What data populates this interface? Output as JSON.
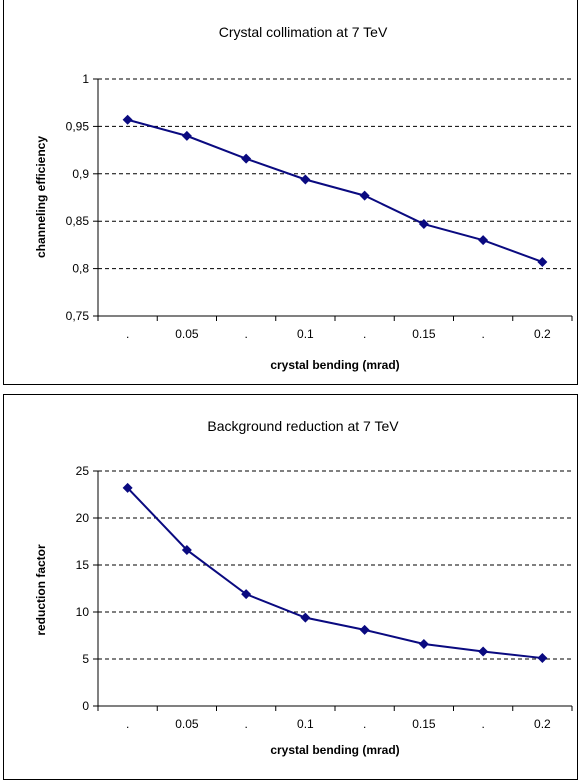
{
  "chart_data": [
    {
      "type": "line",
      "title": "Crystal collimation at 7 TeV",
      "xlabel": "crystal bending (mrad)",
      "ylabel": "channeling efficiency",
      "x_tick_labels": [
        ".",
        "0.05",
        ".",
        "0.1",
        ".",
        "0.15",
        ".",
        "0.2"
      ],
      "y_tick_labels": [
        "0,75",
        "0,8",
        "0,85",
        "0,9",
        "0,95",
        "1"
      ],
      "y_ticks": [
        0.75,
        0.8,
        0.85,
        0.9,
        0.95,
        1.0
      ],
      "ylim": [
        0.75,
        1.0
      ],
      "grid": "horizontal dashed",
      "color": "#0a0a80",
      "marker": "diamond",
      "series": [
        {
          "x": [
            0.025,
            0.05,
            0.075,
            0.1,
            0.125,
            0.15,
            0.175,
            0.2
          ],
          "values": [
            0.957,
            0.94,
            0.916,
            0.894,
            0.877,
            0.847,
            0.83,
            0.807
          ]
        }
      ]
    },
    {
      "type": "line",
      "title": "Background reduction at 7 TeV",
      "xlabel": "crystal bending (mrad)",
      "ylabel": "reduction factor",
      "x_tick_labels": [
        ".",
        "0.05",
        ".",
        "0.1",
        ".",
        "0.15",
        ".",
        "0.2"
      ],
      "y_tick_labels": [
        "0",
        "5",
        "10",
        "15",
        "20",
        "25"
      ],
      "y_ticks": [
        0,
        5,
        10,
        15,
        20,
        25
      ],
      "ylim": [
        0,
        25
      ],
      "grid": "horizontal dashed",
      "color": "#0a0a80",
      "marker": "diamond",
      "series": [
        {
          "x": [
            0.025,
            0.05,
            0.075,
            0.1,
            0.125,
            0.15,
            0.175,
            0.2
          ],
          "values": [
            23.2,
            16.6,
            11.9,
            9.4,
            8.1,
            6.6,
            5.8,
            5.1
          ]
        }
      ]
    }
  ]
}
